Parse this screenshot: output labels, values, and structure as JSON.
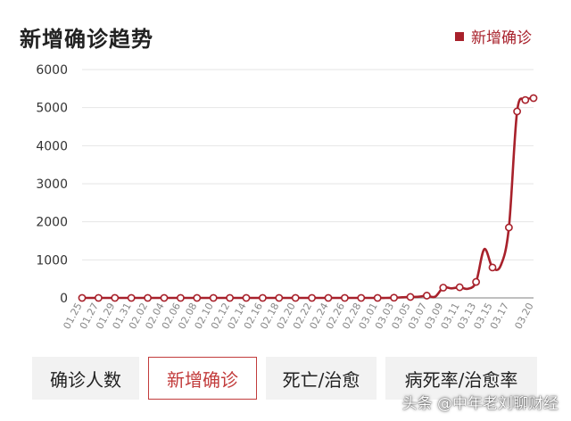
{
  "title": "新增确诊趋势",
  "legend": {
    "label": "新增确诊",
    "color": "#a8212b"
  },
  "tabs": [
    {
      "label": "确诊人数",
      "active": false
    },
    {
      "label": "新增确诊",
      "active": true
    },
    {
      "label": "死亡/治愈",
      "active": false
    },
    {
      "label": "病死率/治愈率",
      "active": false
    }
  ],
  "watermark": "头条 @中年老刘聊财经",
  "chart_data": {
    "type": "line",
    "title": "新增确诊趋势",
    "xlabel": "",
    "ylabel": "",
    "ylim": [
      0,
      6000
    ],
    "yticks": [
      0,
      1000,
      2000,
      3000,
      4000,
      5000,
      6000
    ],
    "grid": true,
    "legend_position": "top-right",
    "x_tick_labels": [
      "01.25",
      "01.27",
      "01.29",
      "01.31",
      "02.02",
      "02.04",
      "02.06",
      "02.08",
      "02.10",
      "02.12",
      "02.14",
      "02.16",
      "02.18",
      "02.20",
      "02.22",
      "02.24",
      "02.26",
      "02.28",
      "03.01",
      "03.03",
      "03.05",
      "03.07",
      "03.09",
      "03.11",
      "03.13",
      "03.15",
      "03.17",
      "03.20"
    ],
    "series": [
      {
        "name": "新增确诊",
        "color": "#a8212b",
        "x": [
          "01.25",
          "01.26",
          "01.27",
          "01.28",
          "01.29",
          "01.30",
          "01.31",
          "02.01",
          "02.02",
          "02.03",
          "02.04",
          "02.05",
          "02.06",
          "02.07",
          "02.08",
          "02.09",
          "02.10",
          "02.11",
          "02.12",
          "02.13",
          "02.14",
          "02.15",
          "02.16",
          "02.17",
          "02.18",
          "02.19",
          "02.20",
          "02.21",
          "02.22",
          "02.23",
          "02.24",
          "02.25",
          "02.26",
          "02.27",
          "02.28",
          "02.29",
          "03.01",
          "03.02",
          "03.03",
          "03.04",
          "03.05",
          "03.06",
          "03.07",
          "03.08",
          "03.09",
          "03.10",
          "03.11",
          "03.12",
          "03.13",
          "03.14",
          "03.15",
          "03.16",
          "03.17",
          "03.18",
          "03.19",
          "03.20"
        ],
        "values": [
          0,
          0,
          0,
          0,
          0,
          0,
          0,
          0,
          0,
          0,
          0,
          0,
          0,
          0,
          0,
          0,
          0,
          0,
          0,
          0,
          0,
          0,
          0,
          0,
          0,
          0,
          0,
          0,
          0,
          0,
          0,
          0,
          0,
          0,
          0,
          0,
          0,
          0,
          5,
          15,
          25,
          30,
          60,
          30,
          270,
          250,
          280,
          240,
          420,
          1280,
          800,
          850,
          1850,
          4900,
          5200,
          5250
        ],
        "markers": [
          0,
          0,
          0,
          0,
          0,
          0,
          0,
          0,
          0,
          0,
          0,
          0,
          0,
          0,
          0,
          0,
          0,
          0,
          0,
          0,
          0,
          0,
          0,
          0,
          0,
          0,
          0,
          0,
          0,
          0,
          0,
          0,
          0,
          0,
          0,
          0,
          0,
          0,
          5,
          30,
          270,
          280,
          420,
          800,
          1850,
          4900,
          5250
        ]
      }
    ]
  }
}
